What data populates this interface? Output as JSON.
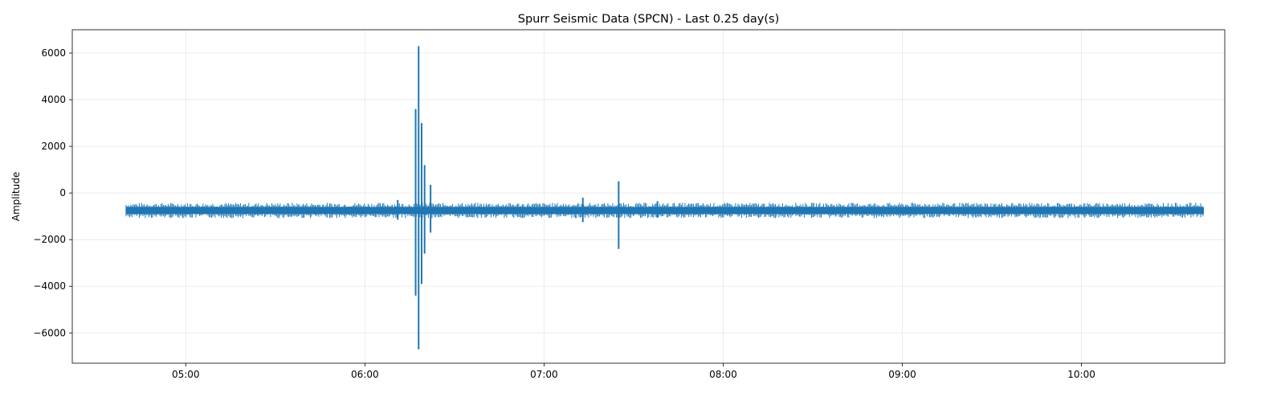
{
  "chart_data": {
    "type": "line",
    "title": "Spurr Seismic Data (SPCN) - Last 0.25 day(s)",
    "xlabel": "",
    "ylabel": "Amplitude",
    "x_unit": "time (HH:MM)",
    "xlim": [
      "04:22",
      "10:48"
    ],
    "ylim": [
      -7300,
      7000
    ],
    "x_ticks": [
      "05:00",
      "06:00",
      "07:00",
      "08:00",
      "09:00",
      "10:00"
    ],
    "y_ticks": [
      6000,
      4000,
      2000,
      0,
      -2000,
      -4000,
      -6000
    ],
    "y_tick_labels": [
      "6000",
      "4000",
      "2000",
      "0",
      "−2000",
      "−4000",
      "−6000"
    ],
    "grid": true,
    "legend": "none",
    "series": [
      {
        "color": "#1f77b4",
        "baseline": -750,
        "noise_band": [
          -900,
          -600
        ],
        "x_range": [
          "04:40",
          "10:41"
        ],
        "events": [
          {
            "time": "06:11",
            "max": -300,
            "min": -1150
          },
          {
            "time": "06:17",
            "max": 3600,
            "min": -4400
          },
          {
            "time": "06:18",
            "max": 6300,
            "min": -6700
          },
          {
            "time": "06:19",
            "max": 3000,
            "min": -3900
          },
          {
            "time": "06:20",
            "max": 1200,
            "min": -2600
          },
          {
            "time": "06:22",
            "max": 350,
            "min": -1700
          },
          {
            "time": "07:13",
            "max": -200,
            "min": -1250
          },
          {
            "time": "07:25",
            "max": 500,
            "min": -2400
          },
          {
            "time": "07:38",
            "max": -350,
            "min": -1050
          }
        ]
      }
    ]
  }
}
